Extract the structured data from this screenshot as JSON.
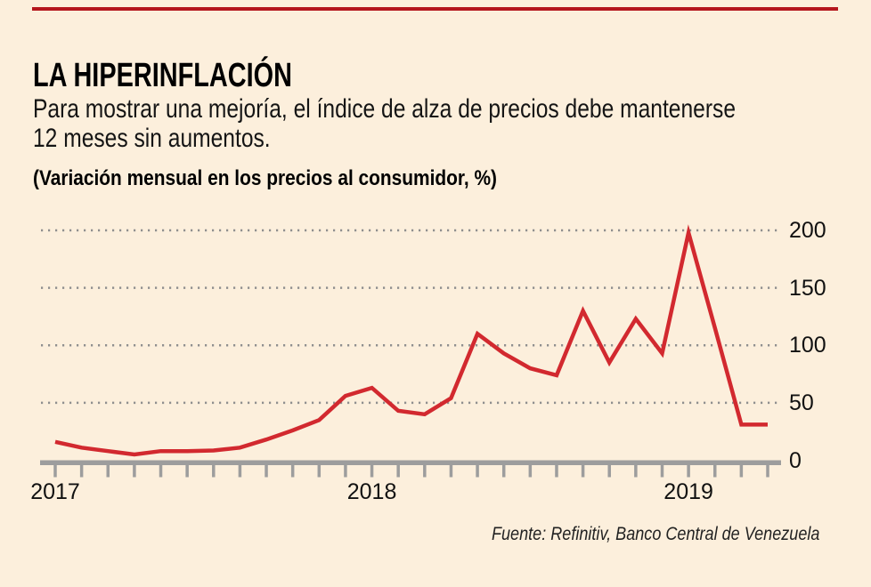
{
  "header": {
    "title": "LA HIPERINFLACIÓN",
    "subtitle_lines": [
      "Para mostrar una mejoría, el índice de alza de precios debe mantenerse",
      "12 meses sin aumentos."
    ],
    "chart_label": "(Variación mensual en los precios al consumidor, %)"
  },
  "source": "Fuente: Refinitiv, Banco Central de Venezuela",
  "colors": {
    "background": "#fcefdc",
    "line_red": "#d2292f",
    "top_bar_red": "#b5161d",
    "grid_gray": "#8f8f8f",
    "axis_gray": "#9d9d9d",
    "text_black": "#111111"
  },
  "chart_data": {
    "type": "line",
    "title": "(Variación mensual en los precios al consumidor, %)",
    "xlabel": "",
    "ylabel": "",
    "grid": "horizontal-dotted",
    "legend_position": "none",
    "ylim": [
      0,
      210
    ],
    "y_ticks": [
      0,
      50,
      100,
      150,
      200
    ],
    "x": [
      "2017-01",
      "2017-02",
      "2017-03",
      "2017-04",
      "2017-05",
      "2017-06",
      "2017-07",
      "2017-08",
      "2017-09",
      "2017-10",
      "2017-11",
      "2017-12",
      "2018-01",
      "2018-02",
      "2018-03",
      "2018-04",
      "2018-05",
      "2018-06",
      "2018-07",
      "2018-08",
      "2018-09",
      "2018-10",
      "2018-11",
      "2018-12",
      "2019-01",
      "2019-02",
      "2019-03",
      "2019-04"
    ],
    "series": [
      {
        "name": "Variación mensual de precios al consumidor (%)",
        "values": [
          16,
          11,
          8,
          5,
          8,
          8,
          8.5,
          11,
          18,
          26,
          35,
          56,
          63,
          43,
          40,
          54,
          110,
          93,
          80,
          74,
          130,
          85,
          123,
          93,
          198,
          115,
          31,
          31
        ]
      }
    ],
    "x_year_labels": [
      {
        "label": "2017",
        "month_index": 0
      },
      {
        "label": "2018",
        "month_index": 12
      },
      {
        "label": "2019",
        "month_index": 24
      }
    ]
  }
}
